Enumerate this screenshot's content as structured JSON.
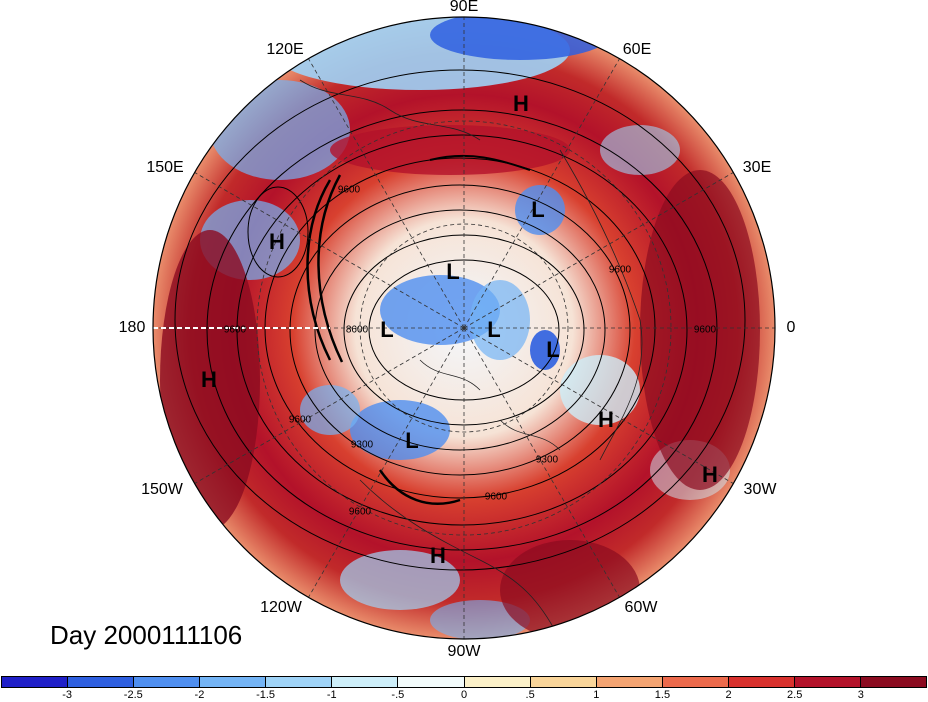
{
  "title": "Day 2000111106",
  "longitude_labels": {
    "n90e": "90E",
    "n60e": "60E",
    "n30e": "30E",
    "n0": "0",
    "n30w": "30W",
    "n60w": "60W",
    "n90w": "90W",
    "n120w": "120W",
    "n150w": "150W",
    "n180": "180",
    "n150e": "150E",
    "n120e": "120E"
  },
  "pressure_systems": [
    "H",
    "H",
    "L",
    "H",
    "L",
    "L",
    "L",
    "L",
    "H",
    "L",
    "H",
    "H",
    "H"
  ],
  "contour_labels": [
    "9600",
    "9600",
    "9300",
    "9600",
    "9300",
    "9600",
    "9600",
    "9600",
    "9600",
    "8600"
  ],
  "colorbar": {
    "ticks": [
      "-3",
      "-2.5",
      "-2",
      "-1.5",
      "-1",
      "-.5",
      "0",
      ".5",
      "1",
      "1.5",
      "2",
      "2.5",
      "3"
    ],
    "colors": [
      "#1f1fc8",
      "#2e5fe0",
      "#4f8ff0",
      "#74b4f5",
      "#9fd3f7",
      "#cdeef9",
      "#f2fbfb",
      "#fbf0c8",
      "#f9d59a",
      "#f4a472",
      "#ec6a4c",
      "#d8312d",
      "#b3122a",
      "#8b0b20"
    ]
  }
}
